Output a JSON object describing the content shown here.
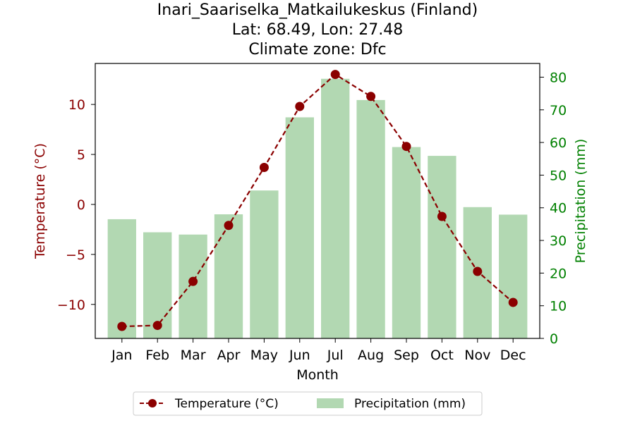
{
  "chart_data": {
    "type": "bar+line",
    "title_lines": [
      "Inari_Saariselka_Matkailukeskus (Finland)",
      "Lat: 68.49, Lon: 27.48",
      "Climate zone: Dfc"
    ],
    "xlabel": "Month",
    "ylabel_left": "Temperature (°C)",
    "ylabel_right": "Precipitation (mm)",
    "categories": [
      "Jan",
      "Feb",
      "Mar",
      "Apr",
      "May",
      "Jun",
      "Jul",
      "Aug",
      "Sep",
      "Oct",
      "Nov",
      "Dec"
    ],
    "temperature": {
      "name": "Temperature (°C)",
      "values": [
        -12.2,
        -12.1,
        -7.7,
        -2.1,
        3.7,
        9.8,
        13.0,
        10.8,
        5.8,
        -1.2,
        -6.7,
        -9.8
      ],
      "color": "#8b0000"
    },
    "precipitation": {
      "name": "Precipitation (mm)",
      "values": [
        36.5,
        32.5,
        31.8,
        38.0,
        45.3,
        67.7,
        79.5,
        73.0,
        58.6,
        55.9,
        40.2,
        37.9
      ],
      "color": "#b2d8b2"
    },
    "ylim_left": [
      -13.4,
      14.1
    ],
    "ylim_right": [
      0,
      84.2
    ],
    "yticks_left": [
      -10,
      -5,
      0,
      5,
      10
    ],
    "ytick_labels_left": [
      "−10",
      "−5",
      "0",
      "5",
      "10"
    ],
    "yticks_right": [
      0,
      10,
      20,
      30,
      40,
      50,
      60,
      70,
      80
    ],
    "ytick_labels_right": [
      "0",
      "10",
      "20",
      "30",
      "40",
      "50",
      "60",
      "70",
      "80"
    ],
    "left_axis_color": "#8b0000",
    "right_axis_color": "#008000",
    "grid": false,
    "legend_placement": "bottom-center"
  }
}
